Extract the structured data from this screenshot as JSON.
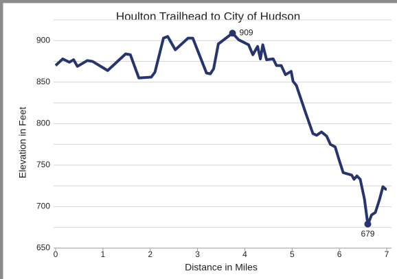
{
  "chart_data": {
    "type": "line",
    "title": "Houlton Trailhead to City of Hudson",
    "x_label": "Distance in Miles",
    "y_label": "Elevation in Feet",
    "xlim": [
      0,
      7
    ],
    "xticks": [
      0,
      1,
      2,
      3,
      4,
      5,
      6,
      7
    ],
    "ylim": [
      650,
      925
    ],
    "yticks": [
      650,
      700,
      750,
      800,
      850,
      900
    ],
    "yminorticks": [
      675,
      725,
      775,
      825,
      875,
      925
    ],
    "grid": true,
    "series": [
      {
        "color": "#27346e",
        "x": [
          0,
          0.15,
          0.29,
          0.38,
          0.46,
          0.67,
          0.78,
          1.1,
          1.48,
          1.58,
          1.76,
          2.02,
          2.1,
          2.28,
          2.37,
          2.53,
          2.8,
          2.9,
          3.19,
          3.27,
          3.34,
          3.44,
          3.74,
          3.87,
          4.08,
          4.17,
          4.27,
          4.33,
          4.38,
          4.46,
          4.6,
          4.67,
          4.77,
          4.86,
          4.98,
          5.02,
          5.09,
          5.28,
          5.44,
          5.52,
          5.62,
          5.73,
          5.81,
          5.91,
          5.99,
          6.08,
          6.26,
          6.31,
          6.37,
          6.44,
          6.53,
          6.6,
          6.64,
          6.68,
          6.76,
          6.85,
          6.92,
          6.98,
          7.0
        ],
        "values": [
          870,
          878,
          874,
          877,
          869,
          876,
          875,
          864,
          884,
          883,
          855,
          856,
          862,
          903,
          905,
          889,
          903,
          903,
          861,
          860,
          866,
          896,
          909,
          901,
          895,
          883,
          893,
          878,
          895,
          877,
          878,
          870,
          870,
          859,
          863,
          851,
          846,
          814,
          788,
          786,
          790,
          785,
          775,
          772,
          757,
          741,
          738,
          733,
          737,
          733,
          709,
          679,
          684,
          690,
          693,
          709,
          724,
          721,
          721
        ]
      }
    ],
    "annotations": [
      {
        "x": 3.74,
        "y": 909,
        "label": "909"
      },
      {
        "x": 6.6,
        "y": 679,
        "label": "679"
      }
    ]
  }
}
